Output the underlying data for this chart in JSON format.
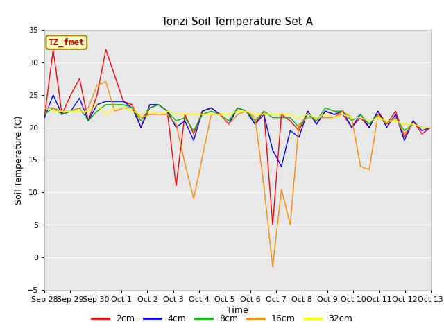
{
  "title": "Tonzi Soil Temperature Set A",
  "xlabel": "Time",
  "ylabel": "Soil Temperature (C)",
  "ylim": [
    -5,
    35
  ],
  "yticks": [
    -5,
    0,
    5,
    10,
    15,
    20,
    25,
    30,
    35
  ],
  "bg_color": "#dcdcdc",
  "plot_bg": "#e8e8e8",
  "annotation_label": "TZ_fmet",
  "annotation_color": "#cc0000",
  "annotation_bg": "#ffffcc",
  "annotation_edge": "#aa8800",
  "line_colors": {
    "2cm": "#ff0000",
    "4cm": "#0000ff",
    "8cm": "#00bb00",
    "16cm": "#ff8800",
    "32cm": "#ffff00"
  },
  "x_tick_labels": [
    "Sep 28",
    "Sep 29",
    "Sep 30",
    "Oct 1",
    "Oct 2",
    "Oct 3",
    "Oct 4",
    "Oct 5",
    "Oct 6",
    "Oct 7",
    "Oct 8",
    "Oct 9",
    "Oct 10",
    "Oct 11",
    "Oct 12",
    "Oct 13"
  ],
  "x_tick_positions": [
    0,
    1,
    2,
    3,
    4,
    5,
    6,
    7,
    8,
    9,
    10,
    11,
    12,
    13,
    14,
    15
  ],
  "data_2cm": [
    21.5,
    32.0,
    22.0,
    25.0,
    27.5,
    21.0,
    25.0,
    32.0,
    28.0,
    24.0,
    23.5,
    20.0,
    23.0,
    23.5,
    22.5,
    11.0,
    22.0,
    19.0,
    22.5,
    23.0,
    22.0,
    20.5,
    23.0,
    22.5,
    20.5,
    22.5,
    5.0,
    22.0,
    21.0,
    19.5,
    22.5,
    20.5,
    22.5,
    22.0,
    22.0,
    20.0,
    21.5,
    20.0,
    22.5,
    20.5,
    22.5,
    18.5,
    21.0,
    19.0,
    20.0
  ],
  "data_4cm": [
    21.5,
    25.0,
    22.0,
    22.5,
    24.5,
    21.0,
    23.5,
    24.0,
    24.0,
    24.0,
    23.0,
    20.0,
    23.5,
    23.5,
    22.5,
    20.0,
    21.0,
    18.0,
    22.5,
    23.0,
    22.0,
    20.5,
    23.0,
    22.5,
    20.5,
    22.0,
    16.5,
    14.0,
    19.5,
    18.5,
    22.5,
    20.5,
    22.5,
    22.0,
    22.5,
    20.0,
    22.0,
    20.0,
    22.5,
    20.0,
    22.0,
    18.0,
    21.0,
    19.5,
    20.0
  ],
  "data_8cm": [
    22.0,
    23.0,
    22.0,
    22.5,
    23.0,
    21.0,
    22.5,
    23.5,
    23.5,
    23.5,
    23.0,
    21.0,
    23.0,
    23.5,
    22.5,
    21.0,
    21.5,
    19.5,
    22.0,
    22.5,
    22.0,
    21.0,
    23.0,
    22.5,
    21.0,
    22.5,
    21.5,
    21.5,
    21.5,
    20.0,
    22.0,
    21.0,
    23.0,
    22.5,
    22.5,
    21.0,
    22.0,
    20.5,
    22.0,
    20.5,
    21.5,
    19.5,
    20.5,
    20.0,
    20.0
  ],
  "data_16cm": [
    23.0,
    23.0,
    22.5,
    22.5,
    23.0,
    23.0,
    26.5,
    27.0,
    22.5,
    23.0,
    23.0,
    21.5,
    22.0,
    22.0,
    22.0,
    20.5,
    14.5,
    9.0,
    15.5,
    22.0,
    22.0,
    20.5,
    22.0,
    22.5,
    21.5,
    11.0,
    -1.5,
    10.5,
    5.0,
    20.5,
    21.5,
    21.5,
    21.5,
    21.5,
    22.5,
    21.5,
    14.0,
    13.5,
    22.0,
    20.5,
    21.5,
    19.0,
    20.5,
    20.0,
    20.0
  ],
  "data_32cm": [
    23.0,
    22.5,
    22.5,
    22.5,
    22.5,
    22.5,
    23.5,
    22.0,
    23.0,
    23.0,
    22.5,
    22.0,
    22.5,
    22.0,
    22.5,
    22.0,
    22.0,
    22.0,
    22.0,
    22.0,
    22.0,
    22.0,
    22.5,
    22.5,
    22.0,
    22.0,
    22.0,
    22.0,
    22.0,
    21.5,
    22.0,
    21.5,
    22.0,
    21.5,
    22.0,
    21.5,
    21.5,
    21.0,
    21.5,
    21.0,
    21.0,
    20.5,
    20.5,
    20.0,
    20.0
  ]
}
